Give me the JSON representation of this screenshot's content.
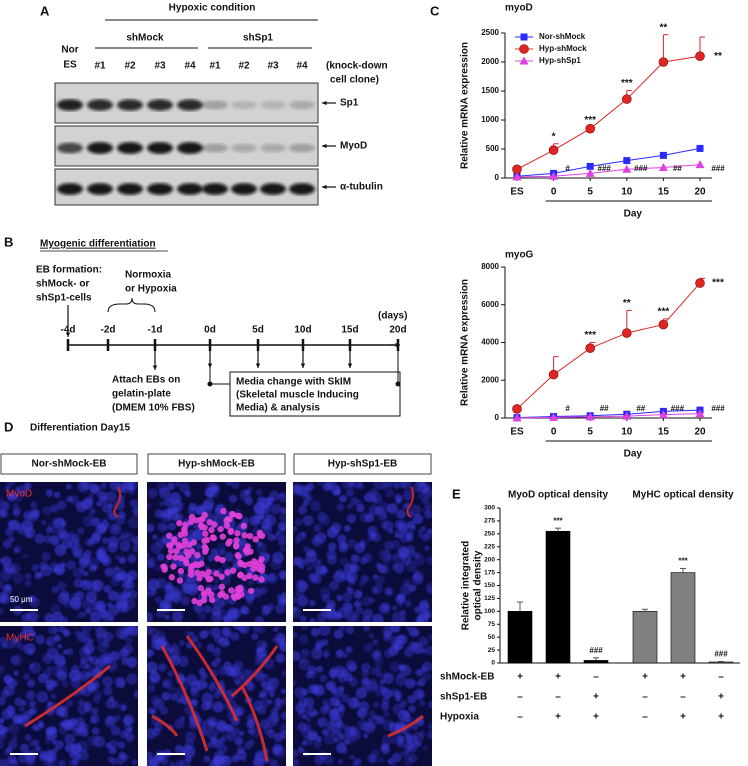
{
  "panel_labels": [
    "A",
    "B",
    "C",
    "D",
    "E"
  ],
  "panel_a": {
    "condition": "Hypoxic condition",
    "groups": [
      "shMock",
      "shSp1"
    ],
    "control": [
      "Nor",
      "ES"
    ],
    "lanes": [
      "#1",
      "#2",
      "#3",
      "#4",
      "#1",
      "#2",
      "#3",
      "#4"
    ],
    "lane_note": [
      "(knock-down",
      "cell clone)"
    ],
    "blots": [
      "Sp1",
      "MyoD",
      "α-tubulin"
    ]
  },
  "panel_b": {
    "title": "Myogenic differentiation",
    "eb_formation": [
      "EB formation:",
      "shMock- or",
      "shSp1-cells"
    ],
    "condition": [
      "Normoxia",
      "or Hypoxia"
    ],
    "unit": "(days)",
    "timepoints": [
      "-4d",
      "-2d",
      "-1d",
      "0d",
      "5d",
      "10d",
      "15d",
      "20d"
    ],
    "attach": [
      "Attach EBs on",
      "gelatin-plate",
      "(DMEM 10% FBS)"
    ],
    "media": [
      "Media change with SkIM",
      "(Skeletal muscle Inducing",
      "Media) & analysis"
    ]
  },
  "panel_d": {
    "title": "Differentiation Day15",
    "columns": [
      "Nor-shMock-EB",
      "Hyp-shMock-EB",
      "Hyp-shSp1-EB"
    ],
    "rows": [
      "MyoD",
      "MyHC"
    ],
    "scale_bar": "50 μm"
  },
  "chart_data": [
    {
      "type": "line",
      "title": "myoD",
      "ylabel": "Relative mRNA expression",
      "xlabel": "Day",
      "categories": [
        "ES",
        "0",
        "5",
        "10",
        "15",
        "20"
      ],
      "ylim": [
        0,
        2500
      ],
      "yticks": [
        0,
        500,
        1000,
        1500,
        2000,
        2500
      ],
      "legend": "upper left",
      "series": [
        {
          "name": "Nor-shMock",
          "color": "#2a2aff",
          "marker": "square",
          "values": [
            30,
            80,
            200,
            300,
            390,
            510
          ]
        },
        {
          "name": "Hyp-shMock",
          "color": "#e02424",
          "marker": "circle",
          "values": [
            150,
            480,
            850,
            1360,
            2000,
            2100
          ],
          "errors": [
            null,
            110,
            20,
            150,
            470,
            330
          ]
        },
        {
          "name": "Hyp-shSp1",
          "color": "#e040e0",
          "marker": "triangle",
          "values": [
            20,
            30,
            80,
            150,
            180,
            230
          ]
        }
      ],
      "star_labels": [
        null,
        "*",
        "***",
        "***",
        "**",
        "**"
      ],
      "hash_labels": [
        null,
        "#",
        "###",
        "###",
        "##",
        "###"
      ]
    },
    {
      "type": "line",
      "title": "myoG",
      "ylabel": "Relative mRNA expression",
      "xlabel": "Day",
      "categories": [
        "ES",
        "0",
        "5",
        "10",
        "15",
        "20"
      ],
      "ylim": [
        0,
        8000
      ],
      "yticks": [
        0,
        2000,
        4000,
        6000,
        8000
      ],
      "series": [
        {
          "color": "#2a2aff",
          "marker": "square",
          "values": [
            20,
            80,
            120,
            200,
            350,
            420
          ]
        },
        {
          "color": "#e02424",
          "marker": "circle",
          "values": [
            480,
            2300,
            3700,
            4500,
            4950,
            7150
          ],
          "errors": [
            null,
            950,
            300,
            1200,
            300,
            250
          ]
        },
        {
          "color": "#e040e0",
          "marker": "triangle",
          "values": [
            0,
            30,
            60,
            100,
            180,
            230
          ]
        }
      ],
      "star_labels": [
        null,
        null,
        "***",
        "**",
        "***",
        "***"
      ],
      "hash_labels": [
        null,
        "#",
        "##",
        "##",
        "###",
        "###"
      ]
    },
    {
      "type": "bar",
      "ylabel": [
        "Relative integrated",
        "optical density"
      ],
      "ylim": [
        0,
        300
      ],
      "yticks": [
        0,
        25,
        50,
        75,
        100,
        125,
        150,
        175,
        200,
        225,
        250,
        275,
        300
      ],
      "groups": [
        {
          "title": "MyoD optical density",
          "color": "#000000",
          "values": [
            100,
            255,
            5
          ],
          "errors": [
            18,
            6,
            5
          ],
          "annotations": [
            null,
            "***",
            "###"
          ]
        },
        {
          "title": "MyHC optical density",
          "color": "#808080",
          "values": [
            100,
            175,
            2
          ],
          "errors": [
            4,
            8,
            1
          ],
          "annotations": [
            null,
            "***",
            "###"
          ]
        }
      ],
      "conditions": [
        {
          "name": "shMock-EB",
          "marks": [
            "+",
            "+",
            "–",
            "+",
            "+",
            "–"
          ]
        },
        {
          "name": "shSp1-EB",
          "marks": [
            "–",
            "–",
            "+",
            "–",
            "–",
            "+"
          ]
        },
        {
          "name": "Hypoxia",
          "marks": [
            "–",
            "+",
            "+",
            "–",
            "+",
            "+"
          ]
        }
      ]
    }
  ]
}
